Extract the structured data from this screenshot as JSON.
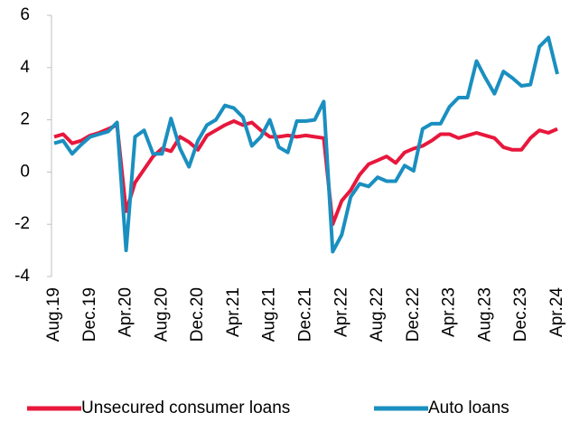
{
  "chart_data": {
    "type": "line",
    "categories": [
      "Aug.19",
      null,
      null,
      null,
      "Dec.19",
      null,
      null,
      null,
      "Apr.20",
      null,
      null,
      null,
      "Aug.20",
      null,
      null,
      null,
      "Dec.20",
      null,
      null,
      null,
      "Apr.21",
      null,
      null,
      null,
      "Aug.21",
      null,
      null,
      null,
      "Dec.21",
      null,
      null,
      null,
      "Apr.22",
      null,
      null,
      null,
      "Aug.22",
      null,
      null,
      null,
      "Dec.22",
      null,
      null,
      null,
      "Apr.23",
      null,
      null,
      null,
      "Aug.23",
      null,
      null,
      null,
      "Dec.23",
      null,
      null,
      null,
      "Apr.24"
    ],
    "series": [
      {
        "name": "Unsecured consumer loans",
        "color": "#e8173c",
        "values": [
          1.35,
          1.45,
          1.1,
          1.2,
          1.4,
          1.5,
          1.65,
          1.8,
          -1.5,
          -0.4,
          0.1,
          0.6,
          0.9,
          0.8,
          1.35,
          1.15,
          0.85,
          1.4,
          1.6,
          1.8,
          1.95,
          1.8,
          1.9,
          1.6,
          1.35,
          1.35,
          1.4,
          1.35,
          1.4,
          1.35,
          1.3,
          -2.0,
          -1.1,
          -0.7,
          -0.1,
          0.3,
          0.45,
          0.6,
          0.35,
          0.75,
          0.9,
          1.0,
          1.2,
          1.45,
          1.45,
          1.3,
          1.4,
          1.5,
          1.4,
          1.3,
          0.95,
          0.85,
          0.85,
          1.3,
          1.6,
          1.5,
          1.65
        ]
      },
      {
        "name": "Auto loans",
        "color": "#1a8fc0",
        "values": [
          1.1,
          1.2,
          0.7,
          1.05,
          1.35,
          1.45,
          1.55,
          1.9,
          -3.0,
          1.35,
          1.6,
          0.7,
          0.7,
          2.05,
          0.9,
          0.2,
          1.2,
          1.8,
          2.0,
          2.55,
          2.45,
          2.1,
          1.0,
          1.35,
          2.0,
          0.95,
          0.75,
          1.95,
          1.95,
          2.0,
          2.7,
          -3.05,
          -2.4,
          -0.95,
          -0.45,
          -0.55,
          -0.2,
          -0.35,
          -0.35,
          0.25,
          0.05,
          1.65,
          1.85,
          1.85,
          2.5,
          2.85,
          2.85,
          4.25,
          3.6,
          3.0,
          3.85,
          3.6,
          3.3,
          3.35,
          4.8,
          5.15,
          3.75
        ]
      }
    ],
    "ylim": [
      -4,
      6
    ],
    "yticks": [
      -4,
      -2,
      0,
      2,
      4,
      6
    ]
  }
}
